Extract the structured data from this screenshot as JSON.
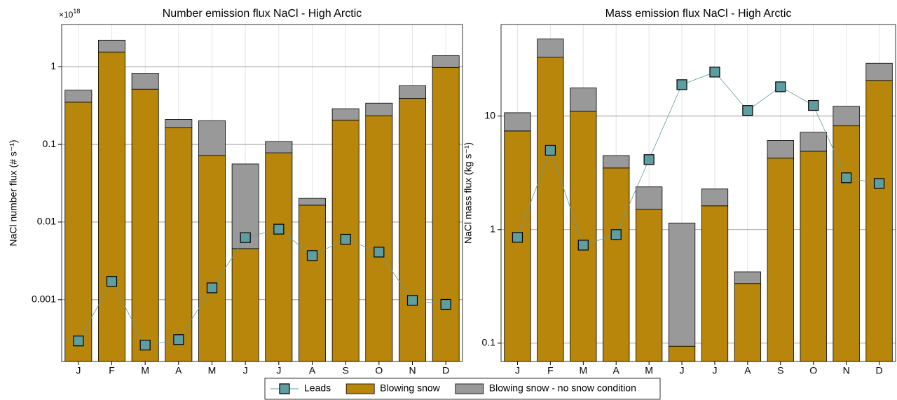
{
  "chart_data": [
    {
      "type": "bar",
      "title": "Number emission flux NaCl - High Arctic",
      "multiplier": "×10",
      "multiplier_exp": "18",
      "ylabel": "NaCl number flux (# s⁻¹)",
      "log_y": true,
      "grid": true,
      "categories": [
        "J",
        "F",
        "M",
        "A",
        "M",
        "J",
        "J",
        "A",
        "S",
        "O",
        "N",
        "D"
      ],
      "ylim": [
        0.00016,
        3.5
      ],
      "yticks": [
        0.001,
        0.01,
        0.1,
        1
      ],
      "series": [
        {
          "name": "Leads",
          "type": "line",
          "color": "#5f9ea0",
          "values": [
            0.000294,
            0.00172,
            0.00026,
            0.000306,
            0.00142,
            0.0063,
            0.0081,
            0.0037,
            0.006,
            0.0041,
            0.00098,
            0.00087
          ]
        },
        {
          "name": "Blowing snow",
          "type": "bar",
          "color": "#b8860b",
          "values": [
            0.35,
            1.55,
            0.515,
            0.164,
            0.072,
            0.00455,
            0.078,
            0.0165,
            0.206,
            0.234,
            0.39,
            0.98
          ]
        },
        {
          "name": "Blowing snow - no snow condition",
          "type": "bar",
          "color": "#999999",
          "values": [
            0.15,
            0.65,
            0.31,
            0.046,
            0.13,
            0.0515,
            0.031,
            0.0037,
            0.082,
            0.106,
            0.18,
            0.41
          ]
        }
      ]
    },
    {
      "type": "bar",
      "title": "Mass emission flux NaCl - High Arctic",
      "ylabel": "NaCl mass flux (kg s⁻¹)",
      "log_y": true,
      "grid": true,
      "categories": [
        "J",
        "F",
        "M",
        "A",
        "M",
        "J",
        "J",
        "A",
        "S",
        "O",
        "N",
        "D"
      ],
      "ylim": [
        0.069,
        64
      ],
      "yticks": [
        0.1,
        1,
        10
      ],
      "series": [
        {
          "name": "Leads",
          "type": "line",
          "color": "#5f9ea0",
          "values": [
            0.855,
            5.0,
            0.73,
            0.905,
            4.14,
            18.9,
            24.4,
            11.2,
            18.1,
            12.4,
            2.86,
            2.55
          ]
        },
        {
          "name": "Blowing snow",
          "type": "bar",
          "color": "#b8860b",
          "values": [
            7.4,
            33,
            11.0,
            3.49,
            1.51,
            0.094,
            1.62,
            0.335,
            4.26,
            4.9,
            8.2,
            20.6
          ]
        },
        {
          "name": "Blowing snow - no snow condition",
          "type": "bar",
          "color": "#999999",
          "values": [
            3.3,
            14.7,
            6.7,
            1.0,
            0.87,
            1.05,
            0.66,
            0.09,
            1.84,
            2.3,
            4.0,
            8.6
          ]
        }
      ]
    }
  ]
}
